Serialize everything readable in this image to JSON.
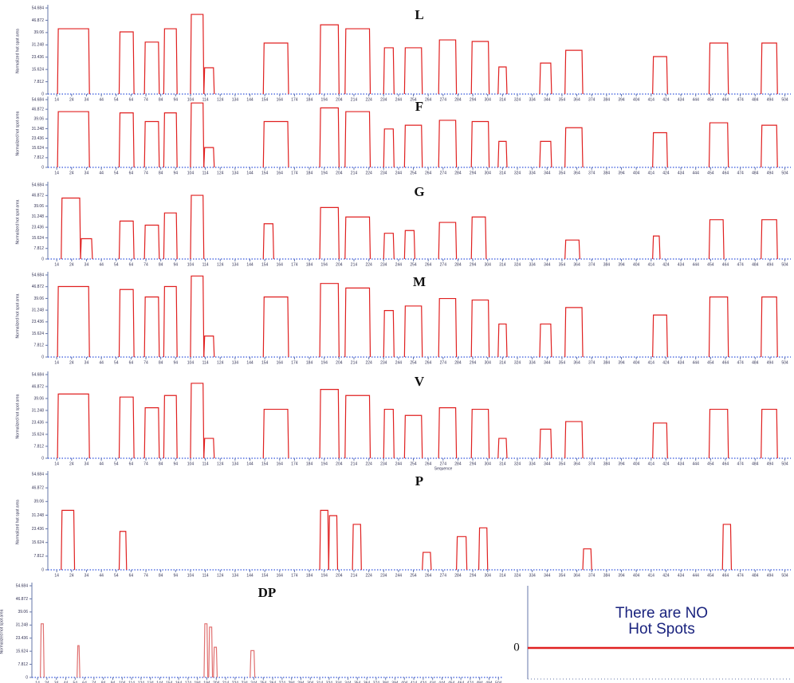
{
  "chart_data": [
    {
      "type": "hotspot",
      "title": "L",
      "ylabel": "Normalized hot spot area",
      "xlim": [
        8,
        508
      ],
      "ylim": [
        0,
        54.684
      ],
      "yticks": [
        0,
        7.812,
        15.624,
        23.436,
        31.248,
        39.06,
        46.872,
        54.684
      ],
      "xticks": [
        14,
        24,
        34,
        44,
        54,
        64,
        74,
        84,
        94,
        104,
        114,
        124,
        134,
        144,
        154,
        164,
        174,
        184,
        194,
        204,
        214,
        224,
        234,
        244,
        254,
        264,
        274,
        284,
        294,
        304,
        314,
        324,
        334,
        344,
        354,
        364,
        374,
        384,
        394,
        404,
        414,
        424,
        434,
        444,
        454,
        464,
        474,
        484,
        494,
        504
      ],
      "color": "#e02020",
      "spots": [
        {
          "start": 14.5,
          "end": 36,
          "value": 41.5
        },
        {
          "start": 56,
          "end": 66,
          "value": 39.5
        },
        {
          "start": 73,
          "end": 83,
          "value": 33
        },
        {
          "start": 86,
          "end": 95,
          "value": 41.5
        },
        {
          "start": 104,
          "end": 113,
          "value": 50.6
        },
        {
          "start": 113,
          "end": 120,
          "value": 16.7
        },
        {
          "start": 153,
          "end": 170,
          "value": 32.4
        },
        {
          "start": 191,
          "end": 204,
          "value": 44
        },
        {
          "start": 208,
          "end": 225,
          "value": 41.5
        },
        {
          "start": 234,
          "end": 241,
          "value": 29.4
        },
        {
          "start": 248,
          "end": 260,
          "value": 29.4
        },
        {
          "start": 271,
          "end": 283,
          "value": 34.4
        },
        {
          "start": 293,
          "end": 305,
          "value": 33.4
        },
        {
          "start": 311,
          "end": 317,
          "value": 17.2
        },
        {
          "start": 339,
          "end": 347,
          "value": 19.7
        },
        {
          "start": 356,
          "end": 368,
          "value": 27.8
        },
        {
          "start": 415,
          "end": 425,
          "value": 23.8
        },
        {
          "start": 453,
          "end": 466,
          "value": 32.4
        },
        {
          "start": 488,
          "end": 499,
          "value": 32.4
        }
      ]
    },
    {
      "type": "hotspot",
      "title": "F",
      "ylabel": "Normalized hot spot area",
      "xlim": [
        8,
        508
      ],
      "ylim": [
        0,
        54.684
      ],
      "yticks": [
        0,
        7.812,
        15.624,
        23.436,
        31.248,
        39.06,
        46.872,
        54.684
      ],
      "xticks": [
        14,
        24,
        34,
        44,
        54,
        64,
        74,
        84,
        94,
        104,
        114,
        124,
        134,
        144,
        154,
        164,
        174,
        184,
        194,
        204,
        214,
        224,
        234,
        244,
        254,
        264,
        274,
        284,
        294,
        304,
        314,
        324,
        334,
        344,
        354,
        364,
        374,
        384,
        394,
        404,
        414,
        424,
        434,
        444,
        454,
        464,
        474,
        484,
        494,
        504
      ],
      "color": "#e02020",
      "spots": [
        {
          "start": 14.5,
          "end": 36,
          "value": 45
        },
        {
          "start": 56,
          "end": 66,
          "value": 44
        },
        {
          "start": 73,
          "end": 83,
          "value": 37
        },
        {
          "start": 86,
          "end": 95,
          "value": 44
        },
        {
          "start": 104,
          "end": 113,
          "value": 52
        },
        {
          "start": 113,
          "end": 120,
          "value": 16
        },
        {
          "start": 153,
          "end": 170,
          "value": 37
        },
        {
          "start": 191,
          "end": 204,
          "value": 48
        },
        {
          "start": 208,
          "end": 225,
          "value": 45
        },
        {
          "start": 234,
          "end": 241,
          "value": 31
        },
        {
          "start": 248,
          "end": 260,
          "value": 34
        },
        {
          "start": 271,
          "end": 283,
          "value": 38
        },
        {
          "start": 293,
          "end": 305,
          "value": 37
        },
        {
          "start": 311,
          "end": 317,
          "value": 21
        },
        {
          "start": 339,
          "end": 347,
          "value": 21
        },
        {
          "start": 356,
          "end": 368,
          "value": 32
        },
        {
          "start": 415,
          "end": 425,
          "value": 28
        },
        {
          "start": 453,
          "end": 466,
          "value": 36
        },
        {
          "start": 488,
          "end": 499,
          "value": 34
        }
      ]
    },
    {
      "type": "hotspot",
      "title": "G",
      "ylabel": "Normalized hot spot area",
      "xlim": [
        8,
        508
      ],
      "ylim": [
        0,
        54.684
      ],
      "yticks": [
        0,
        7.812,
        15.624,
        23.436,
        31.248,
        39.06,
        46.872,
        54.684
      ],
      "xticks": [
        14,
        24,
        34,
        44,
        54,
        64,
        74,
        84,
        94,
        104,
        114,
        124,
        134,
        144,
        154,
        164,
        174,
        184,
        194,
        204,
        214,
        224,
        234,
        244,
        254,
        264,
        274,
        284,
        294,
        304,
        314,
        324,
        334,
        344,
        354,
        364,
        374,
        384,
        394,
        404,
        414,
        424,
        434,
        444,
        454,
        464,
        474,
        484,
        494,
        504
      ],
      "color": "#e02020",
      "spots": [
        {
          "start": 17,
          "end": 30,
          "value": 45
        },
        {
          "start": 30,
          "end": 38,
          "value": 15
        },
        {
          "start": 56,
          "end": 66,
          "value": 28
        },
        {
          "start": 73,
          "end": 83,
          "value": 25
        },
        {
          "start": 86,
          "end": 95,
          "value": 34
        },
        {
          "start": 104,
          "end": 113,
          "value": 47
        },
        {
          "start": 153,
          "end": 160,
          "value": 26
        },
        {
          "start": 191,
          "end": 204,
          "value": 38
        },
        {
          "start": 208,
          "end": 225,
          "value": 31
        },
        {
          "start": 234,
          "end": 241,
          "value": 19
        },
        {
          "start": 248,
          "end": 255,
          "value": 21
        },
        {
          "start": 271,
          "end": 283,
          "value": 27
        },
        {
          "start": 293,
          "end": 303,
          "value": 31
        },
        {
          "start": 356,
          "end": 366,
          "value": 14
        },
        {
          "start": 415,
          "end": 420,
          "value": 17
        },
        {
          "start": 453,
          "end": 463,
          "value": 29
        },
        {
          "start": 488,
          "end": 499,
          "value": 29
        }
      ]
    },
    {
      "type": "hotspot",
      "title": "M",
      "ylabel": "Normalized hot spot area",
      "xlim": [
        8,
        508
      ],
      "ylim": [
        0,
        54.684
      ],
      "yticks": [
        0,
        7.812,
        15.624,
        23.436,
        31.248,
        39.06,
        46.872,
        54.684
      ],
      "xticks": [
        14,
        24,
        34,
        44,
        54,
        64,
        74,
        84,
        94,
        104,
        114,
        124,
        134,
        144,
        154,
        164,
        174,
        184,
        194,
        204,
        214,
        224,
        234,
        244,
        254,
        264,
        274,
        284,
        294,
        304,
        314,
        324,
        334,
        344,
        354,
        364,
        374,
        384,
        394,
        404,
        414,
        424,
        434,
        444,
        454,
        464,
        474,
        484,
        494,
        504
      ],
      "color": "#e02020",
      "spots": [
        {
          "start": 14.5,
          "end": 36,
          "value": 47
        },
        {
          "start": 56,
          "end": 66,
          "value": 45
        },
        {
          "start": 73,
          "end": 83,
          "value": 40
        },
        {
          "start": 86,
          "end": 95,
          "value": 47
        },
        {
          "start": 104,
          "end": 113,
          "value": 54
        },
        {
          "start": 113,
          "end": 120,
          "value": 14
        },
        {
          "start": 153,
          "end": 170,
          "value": 40
        },
        {
          "start": 191,
          "end": 204,
          "value": 49
        },
        {
          "start": 208,
          "end": 225,
          "value": 46
        },
        {
          "start": 234,
          "end": 241,
          "value": 31
        },
        {
          "start": 248,
          "end": 260,
          "value": 34
        },
        {
          "start": 271,
          "end": 283,
          "value": 39
        },
        {
          "start": 293,
          "end": 305,
          "value": 38
        },
        {
          "start": 311,
          "end": 317,
          "value": 22
        },
        {
          "start": 339,
          "end": 347,
          "value": 22
        },
        {
          "start": 356,
          "end": 368,
          "value": 33
        },
        {
          "start": 415,
          "end": 425,
          "value": 28
        },
        {
          "start": 453,
          "end": 466,
          "value": 40
        },
        {
          "start": 488,
          "end": 499,
          "value": 40
        }
      ]
    },
    {
      "type": "hotspot",
      "title": "V",
      "ylabel": "Normalized hot spot area",
      "xlabel": "Sequence",
      "xlim": [
        8,
        508
      ],
      "ylim": [
        0,
        54.684
      ],
      "yticks": [
        0,
        7.812,
        15.624,
        23.436,
        31.248,
        39.06,
        46.872,
        54.684
      ],
      "xticks": [
        14,
        24,
        34,
        44,
        54,
        64,
        74,
        84,
        94,
        104,
        114,
        124,
        134,
        144,
        154,
        164,
        174,
        184,
        194,
        204,
        214,
        224,
        234,
        244,
        254,
        264,
        274,
        284,
        294,
        304,
        314,
        324,
        334,
        344,
        354,
        364,
        374,
        384,
        394,
        404,
        414,
        424,
        434,
        444,
        454,
        464,
        474,
        484,
        494,
        504
      ],
      "color": "#e02020",
      "spots": [
        {
          "start": 14.5,
          "end": 36,
          "value": 42
        },
        {
          "start": 56,
          "end": 66,
          "value": 40
        },
        {
          "start": 73,
          "end": 83,
          "value": 33
        },
        {
          "start": 86,
          "end": 95,
          "value": 41
        },
        {
          "start": 104,
          "end": 113,
          "value": 49
        },
        {
          "start": 113,
          "end": 120,
          "value": 13
        },
        {
          "start": 153,
          "end": 170,
          "value": 32
        },
        {
          "start": 191,
          "end": 204,
          "value": 45
        },
        {
          "start": 208,
          "end": 225,
          "value": 41
        },
        {
          "start": 234,
          "end": 241,
          "value": 32
        },
        {
          "start": 248,
          "end": 260,
          "value": 28
        },
        {
          "start": 271,
          "end": 283,
          "value": 33
        },
        {
          "start": 293,
          "end": 305,
          "value": 32
        },
        {
          "start": 311,
          "end": 317,
          "value": 13
        },
        {
          "start": 339,
          "end": 347,
          "value": 19
        },
        {
          "start": 356,
          "end": 368,
          "value": 24
        },
        {
          "start": 415,
          "end": 425,
          "value": 23
        },
        {
          "start": 453,
          "end": 466,
          "value": 32
        },
        {
          "start": 488,
          "end": 499,
          "value": 32
        }
      ]
    },
    {
      "type": "hotspot",
      "title": "P",
      "ylabel": "Normalized hot spot area",
      "xlim": [
        8,
        508
      ],
      "ylim": [
        0,
        54.684
      ],
      "yticks": [
        0,
        7.812,
        15.624,
        23.436,
        31.248,
        39.06,
        46.872,
        54.684
      ],
      "xticks": [
        14,
        24,
        34,
        44,
        54,
        64,
        74,
        84,
        94,
        104,
        114,
        124,
        134,
        144,
        154,
        164,
        174,
        184,
        194,
        204,
        214,
        224,
        234,
        244,
        254,
        264,
        274,
        284,
        294,
        304,
        314,
        324,
        334,
        344,
        354,
        364,
        374,
        384,
        394,
        404,
        414,
        424,
        434,
        444,
        454,
        464,
        474,
        484,
        494,
        504
      ],
      "color": "#e02020",
      "spots": [
        {
          "start": 17,
          "end": 26,
          "value": 34
        },
        {
          "start": 56,
          "end": 61,
          "value": 22
        },
        {
          "start": 191,
          "end": 197,
          "value": 34
        },
        {
          "start": 197,
          "end": 203,
          "value": 31
        },
        {
          "start": 213,
          "end": 219,
          "value": 26
        },
        {
          "start": 260,
          "end": 266,
          "value": 10
        },
        {
          "start": 283,
          "end": 290,
          "value": 19
        },
        {
          "start": 298,
          "end": 304,
          "value": 24
        },
        {
          "start": 368,
          "end": 374,
          "value": 12
        },
        {
          "start": 462,
          "end": 468,
          "value": 26
        }
      ]
    },
    {
      "type": "hotspot",
      "title": "DP",
      "ylabel": "Normalized hot spot area",
      "xlim": [
        8,
        508
      ],
      "ylim": [
        0,
        54.684
      ],
      "yticks": [
        0,
        7.812,
        15.624,
        23.436,
        31.248,
        39.06,
        46.872,
        54.684
      ],
      "xticks": [
        14,
        24,
        34,
        44,
        54,
        64,
        74,
        84,
        94,
        104,
        114,
        124,
        134,
        144,
        154,
        164,
        174,
        184,
        194,
        204,
        214,
        224,
        234,
        244,
        254,
        264,
        274,
        284,
        294,
        304,
        314,
        324,
        334,
        344,
        354,
        364,
        374,
        384,
        394,
        404,
        414,
        424,
        434,
        444,
        454,
        464,
        474,
        484,
        494,
        504
      ],
      "color": "#e07070",
      "spots": [
        {
          "start": 17,
          "end": 21,
          "value": 32
        },
        {
          "start": 56,
          "end": 59,
          "value": 19
        },
        {
          "start": 191,
          "end": 195,
          "value": 32
        },
        {
          "start": 196,
          "end": 200,
          "value": 30
        },
        {
          "start": 201,
          "end": 205,
          "value": 18
        },
        {
          "start": 240,
          "end": 245,
          "value": 16
        }
      ]
    }
  ],
  "inset": {
    "message": [
      "There are NO",
      "Hot Spots"
    ],
    "label": "0"
  }
}
